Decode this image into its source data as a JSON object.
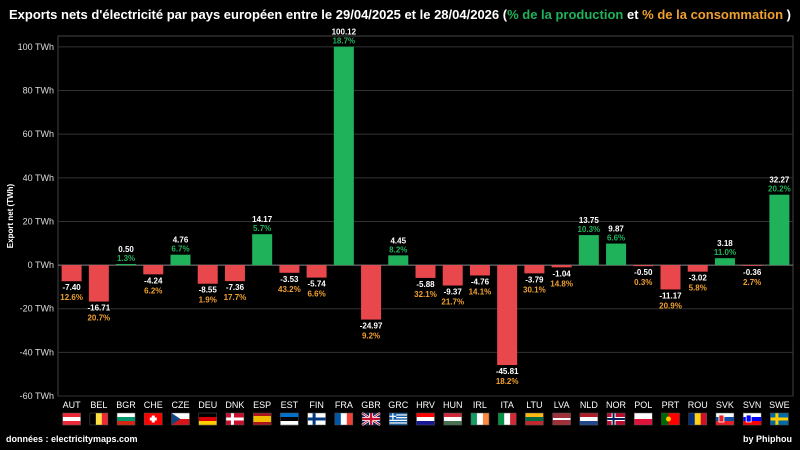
{
  "header": {
    "title_prefix": "Exports nets d'électricité par pays européen entre le 29/04/2025 et le 28/04/2026 (",
    "title_production": "% de la production",
    "title_and": " et ",
    "title_consumption": "% de la consommation",
    "title_suffix": " )"
  },
  "footer": {
    "source": "données : electricitymaps.com",
    "author": "by Phiphou"
  },
  "colors": {
    "positive": "#1fb25a",
    "negative": "#e8474c",
    "production_pct": "#1fb25a",
    "consumption_pct": "#f0a030",
    "grid": "#333333"
  },
  "chart_data": {
    "type": "bar",
    "ylabel": "Export net (TWh)",
    "ylim": [
      -60,
      105
    ],
    "yticks": [
      -60,
      -40,
      -20,
      0,
      20,
      40,
      60,
      80,
      100
    ],
    "ytick_labels": [
      "-60 TWh",
      "-40 TWh",
      "-20 TWh",
      "0 TWh",
      "20 TWh",
      "40 TWh",
      "60 TWh",
      "80 TWh",
      "100 TWh"
    ],
    "grid": true,
    "categories": [
      "AUT",
      "BEL",
      "BGR",
      "CHE",
      "CZE",
      "DEU",
      "DNK",
      "ESP",
      "EST",
      "FIN",
      "FRA",
      "GBR",
      "GRC",
      "HRV",
      "HUN",
      "IRL",
      "ITA",
      "LTU",
      "LVA",
      "NLD",
      "NOR",
      "POL",
      "PRT",
      "ROU",
      "SVK",
      "SVN",
      "SWE"
    ],
    "values": [
      -7.4,
      -16.71,
      0.5,
      -4.24,
      4.76,
      -8.55,
      -7.36,
      14.17,
      -3.53,
      -5.74,
      100.12,
      -24.97,
      4.45,
      -5.88,
      -9.37,
      -4.76,
      -45.81,
      -3.79,
      -1.04,
      13.75,
      9.87,
      -0.5,
      -11.17,
      -3.02,
      3.18,
      -0.36,
      32.27
    ],
    "value_labels": [
      "-7.40",
      "-16.71",
      "0.50",
      "-4.24",
      "4.76",
      "-8.55",
      "-7.36",
      "14.17",
      "-3.53",
      "-5.74",
      "100.12",
      "-24.97",
      "4.45",
      "-5.88",
      "-9.37",
      "-4.76",
      "-45.81",
      "-3.79",
      "-1.04",
      "13.75",
      "9.87",
      "-0.50",
      "-11.17",
      "-3.02",
      "3.18",
      "-0.36",
      "32.27"
    ],
    "percent_labels": [
      "12.6%",
      "20.7%",
      "1.3%",
      "6.2%",
      "6.7%",
      "1.9%",
      "17.7%",
      "5.7%",
      "43.2%",
      "6.6%",
      "18.7%",
      "9.2%",
      "8.2%",
      "32.1%",
      "21.7%",
      "14.1%",
      "18.2%",
      "30.1%",
      "14.8%",
      "10.3%",
      "6.6%",
      "0.3%",
      "20.9%",
      "5.8%",
      "11.0%",
      "2.7%",
      "20.2%"
    ]
  },
  "flags": [
    {
      "code": "AUT",
      "type": "h",
      "colors": [
        "#ed2939",
        "#ffffff",
        "#ed2939"
      ]
    },
    {
      "code": "BEL",
      "type": "v",
      "colors": [
        "#000000",
        "#fae042",
        "#ed2939"
      ]
    },
    {
      "code": "BGR",
      "type": "h",
      "colors": [
        "#ffffff",
        "#00966e",
        "#d62612"
      ]
    },
    {
      "code": "CHE",
      "type": "cross",
      "colors": [
        "#ff0000",
        "#ffffff"
      ]
    },
    {
      "code": "CZE",
      "type": "cze",
      "colors": [
        "#ffffff",
        "#d7141a",
        "#11457e"
      ]
    },
    {
      "code": "DEU",
      "type": "h",
      "colors": [
        "#000000",
        "#dd0000",
        "#ffce00"
      ]
    },
    {
      "code": "DNK",
      "type": "nordic",
      "colors": [
        "#c8102e",
        "#ffffff"
      ]
    },
    {
      "code": "ESP",
      "type": "esp",
      "colors": [
        "#aa151b",
        "#f1bf00",
        "#aa151b"
      ]
    },
    {
      "code": "EST",
      "type": "h",
      "colors": [
        "#0072ce",
        "#000000",
        "#ffffff"
      ]
    },
    {
      "code": "FIN",
      "type": "nordic",
      "colors": [
        "#ffffff",
        "#003580"
      ]
    },
    {
      "code": "FRA",
      "type": "v",
      "colors": [
        "#0055a4",
        "#ffffff",
        "#ef4135"
      ]
    },
    {
      "code": "GBR",
      "type": "gbr",
      "colors": [
        "#012169",
        "#ffffff",
        "#c8102e"
      ]
    },
    {
      "code": "GRC",
      "type": "grc",
      "colors": [
        "#0d5eaf",
        "#ffffff"
      ]
    },
    {
      "code": "HRV",
      "type": "h",
      "colors": [
        "#ff0000",
        "#ffffff",
        "#171796"
      ]
    },
    {
      "code": "HUN",
      "type": "h",
      "colors": [
        "#ce2939",
        "#ffffff",
        "#477050"
      ]
    },
    {
      "code": "IRL",
      "type": "v",
      "colors": [
        "#169b62",
        "#ffffff",
        "#ff883e"
      ]
    },
    {
      "code": "ITA",
      "type": "v",
      "colors": [
        "#009246",
        "#ffffff",
        "#ce2b37"
      ]
    },
    {
      "code": "LTU",
      "type": "h",
      "colors": [
        "#fdb913",
        "#006a44",
        "#c1272d"
      ]
    },
    {
      "code": "LVA",
      "type": "lva",
      "colors": [
        "#9e3039",
        "#ffffff"
      ]
    },
    {
      "code": "NLD",
      "type": "h",
      "colors": [
        "#ae1c28",
        "#ffffff",
        "#21468b"
      ]
    },
    {
      "code": "NOR",
      "type": "nor",
      "colors": [
        "#ba0c2f",
        "#ffffff",
        "#00205b"
      ]
    },
    {
      "code": "POL",
      "type": "h2",
      "colors": [
        "#ffffff",
        "#dc143c"
      ]
    },
    {
      "code": "PRT",
      "type": "prt",
      "colors": [
        "#006600",
        "#ff0000",
        "#ffcc00"
      ]
    },
    {
      "code": "ROU",
      "type": "v",
      "colors": [
        "#002b7f",
        "#fcd116",
        "#ce1126"
      ]
    },
    {
      "code": "SVK",
      "type": "svk",
      "colors": [
        "#ffffff",
        "#0b4ea2",
        "#ee1c25"
      ]
    },
    {
      "code": "SVN",
      "type": "svn",
      "colors": [
        "#ffffff",
        "#0000ff",
        "#ff0000"
      ]
    },
    {
      "code": "SWE",
      "type": "nordic",
      "colors": [
        "#006aa7",
        "#fecc00"
      ]
    }
  ]
}
